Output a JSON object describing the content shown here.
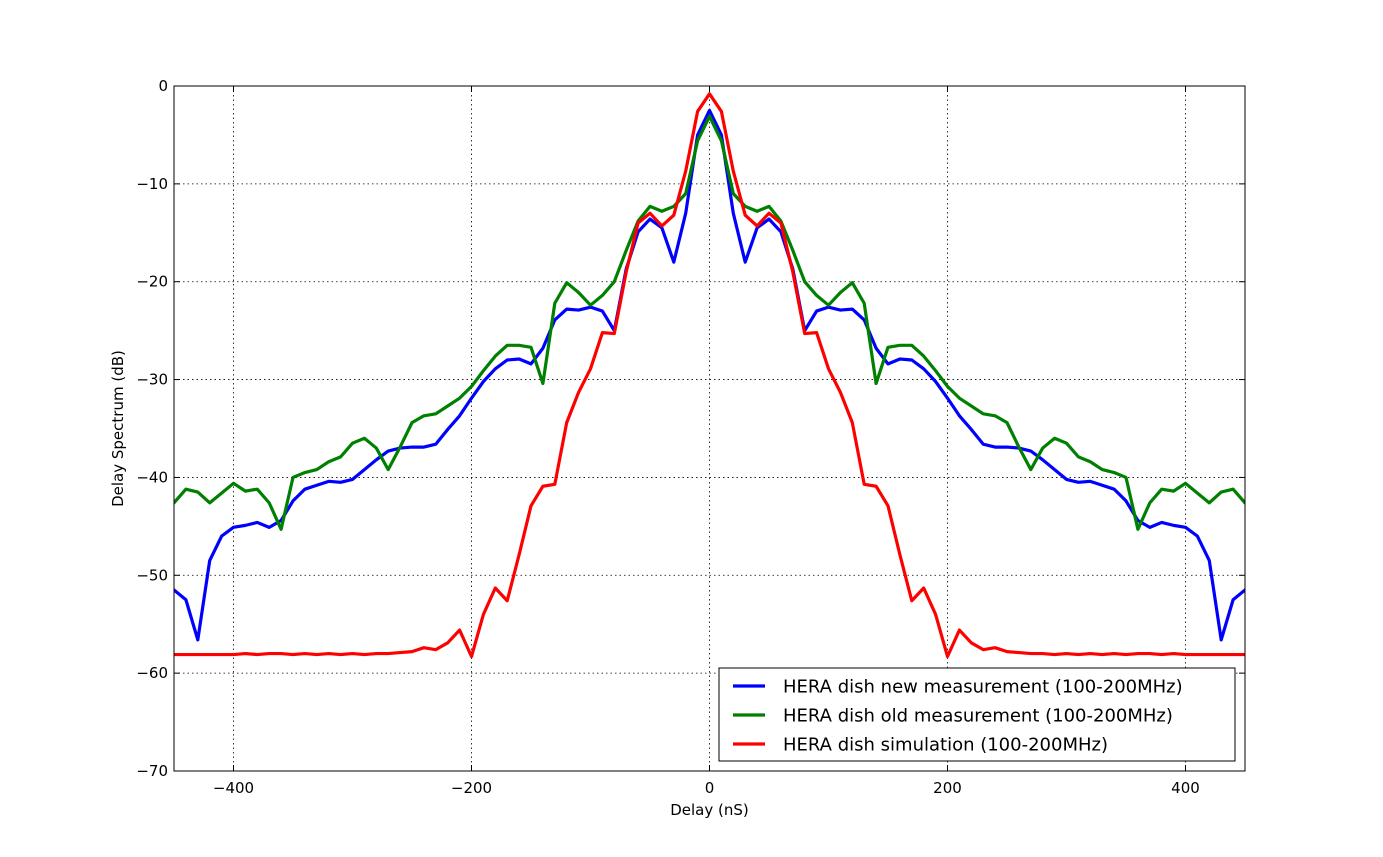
{
  "chart_data": {
    "type": "line",
    "title": "",
    "xlabel": "Delay (nS)",
    "ylabel": "Delay Spectrum (dB)",
    "xlim": [
      -450,
      450
    ],
    "ylim": [
      -70,
      0
    ],
    "xticks": [
      -400,
      -200,
      0,
      200,
      400
    ],
    "yticks": [
      0,
      -10,
      -20,
      -30,
      -40,
      -50,
      -60,
      -70
    ],
    "xtick_labels": [
      "−400",
      "−200",
      "0",
      "200",
      "400"
    ],
    "ytick_labels": [
      "0",
      "−10",
      "−20",
      "−30",
      "−40",
      "−50",
      "−60",
      "−70"
    ],
    "grid": true,
    "legend_position": "lower-right",
    "series": [
      {
        "name": "HERA dish new measurement (100-200MHz)",
        "color": "#0000ff",
        "x": [
          -450,
          -440,
          -430,
          -420,
          -410,
          -400,
          -390,
          -380,
          -370,
          -360,
          -350,
          -340,
          -330,
          -320,
          -310,
          -300,
          -290,
          -280,
          -270,
          -260,
          -250,
          -240,
          -230,
          -220,
          -210,
          -200,
          -190,
          -180,
          -170,
          -160,
          -150,
          -140,
          -130,
          -120,
          -110,
          -100,
          -90,
          -80,
          -70,
          -60,
          -50,
          -40,
          -30,
          -20,
          -10,
          0,
          10,
          20,
          30,
          40,
          50,
          60,
          70,
          80,
          90,
          100,
          110,
          120,
          130,
          140,
          150,
          160,
          170,
          180,
          190,
          200,
          210,
          220,
          230,
          240,
          250,
          260,
          270,
          280,
          290,
          300,
          310,
          320,
          330,
          340,
          350,
          360,
          370,
          380,
          390,
          400,
          410,
          420,
          430,
          440,
          450
        ],
        "values": [
          -51.5,
          -52.5,
          -56.6,
          -48.5,
          -46.0,
          -45.1,
          -44.9,
          -44.6,
          -45.1,
          -44.4,
          -42.4,
          -41.2,
          -40.8,
          -40.4,
          -40.5,
          -40.2,
          -39.2,
          -38.2,
          -37.3,
          -37.0,
          -36.9,
          -36.9,
          -36.6,
          -35.1,
          -33.7,
          -31.9,
          -30.2,
          -28.9,
          -28.0,
          -27.9,
          -28.4,
          -26.8,
          -23.9,
          -22.8,
          -22.9,
          -22.6,
          -23.0,
          -25.0,
          -18.7,
          -14.9,
          -13.6,
          -14.5,
          -18.0,
          -13.0,
          -5.0,
          -2.5,
          -5.0,
          -13.0,
          -18.0,
          -14.5,
          -13.6,
          -14.9,
          -18.7,
          -25.0,
          -23.0,
          -22.6,
          -22.9,
          -22.8,
          -23.9,
          -26.8,
          -28.4,
          -27.9,
          -28.0,
          -28.9,
          -30.2,
          -31.9,
          -33.7,
          -35.1,
          -36.6,
          -36.9,
          -36.9,
          -37.0,
          -37.3,
          -38.2,
          -39.2,
          -40.2,
          -40.5,
          -40.4,
          -40.8,
          -41.2,
          -42.4,
          -44.4,
          -45.1,
          -44.6,
          -44.9,
          -45.1,
          -46.0,
          -48.5,
          -56.6,
          -52.5,
          -51.5
        ]
      },
      {
        "name": "HERA dish old measurement (100-200MHz)",
        "color": "#008000",
        "x": [
          -450,
          -440,
          -430,
          -420,
          -410,
          -400,
          -390,
          -380,
          -370,
          -360,
          -350,
          -340,
          -330,
          -320,
          -310,
          -300,
          -290,
          -280,
          -270,
          -260,
          -250,
          -240,
          -230,
          -220,
          -210,
          -200,
          -190,
          -180,
          -170,
          -160,
          -150,
          -140,
          -130,
          -120,
          -110,
          -100,
          -90,
          -80,
          -70,
          -60,
          -50,
          -40,
          -30,
          -20,
          -10,
          0,
          10,
          20,
          30,
          40,
          50,
          60,
          70,
          80,
          90,
          100,
          110,
          120,
          130,
          140,
          150,
          160,
          170,
          180,
          190,
          200,
          210,
          220,
          230,
          240,
          250,
          260,
          270,
          280,
          290,
          300,
          310,
          320,
          330,
          340,
          350,
          360,
          370,
          380,
          390,
          400,
          410,
          420,
          430,
          440,
          450
        ],
        "values": [
          -42.6,
          -41.2,
          -41.5,
          -42.6,
          -41.6,
          -40.6,
          -41.4,
          -41.2,
          -42.6,
          -45.3,
          -40.0,
          -39.5,
          -39.2,
          -38.4,
          -37.9,
          -36.5,
          -36.0,
          -37.0,
          -39.2,
          -36.9,
          -34.4,
          -33.7,
          -33.5,
          -32.7,
          -31.9,
          -30.7,
          -29.1,
          -27.6,
          -26.5,
          -26.5,
          -26.7,
          -30.4,
          -22.2,
          -20.1,
          -21.1,
          -22.4,
          -21.4,
          -20.0,
          -16.8,
          -13.8,
          -12.3,
          -12.8,
          -12.3,
          -11.0,
          -5.6,
          -3.1,
          -5.6,
          -11.0,
          -12.3,
          -12.8,
          -12.3,
          -13.8,
          -16.8,
          -20.0,
          -21.4,
          -22.4,
          -21.1,
          -20.1,
          -22.2,
          -30.4,
          -26.7,
          -26.5,
          -26.5,
          -27.6,
          -29.1,
          -30.7,
          -31.9,
          -32.7,
          -33.5,
          -33.7,
          -34.4,
          -36.9,
          -39.2,
          -37.0,
          -36.0,
          -36.5,
          -37.9,
          -38.4,
          -39.2,
          -39.5,
          -40.0,
          -45.3,
          -42.6,
          -41.2,
          -41.4,
          -40.6,
          -41.6,
          -42.6,
          -41.5,
          -41.2,
          -42.6
        ]
      },
      {
        "name": "HERA dish simulation (100-200MHz)",
        "color": "#ff0000",
        "x": [
          -450,
          -440,
          -430,
          -420,
          -410,
          -400,
          -390,
          -380,
          -370,
          -360,
          -350,
          -340,
          -330,
          -320,
          -310,
          -300,
          -290,
          -280,
          -270,
          -260,
          -250,
          -240,
          -230,
          -220,
          -210,
          -200,
          -190,
          -180,
          -170,
          -160,
          -150,
          -140,
          -130,
          -120,
          -110,
          -100,
          -90,
          -80,
          -70,
          -60,
          -50,
          -40,
          -30,
          -20,
          -10,
          0,
          10,
          20,
          30,
          40,
          50,
          60,
          70,
          80,
          90,
          100,
          110,
          120,
          130,
          140,
          150,
          160,
          170,
          180,
          190,
          200,
          210,
          220,
          230,
          240,
          250,
          260,
          270,
          280,
          290,
          300,
          310,
          320,
          330,
          340,
          350,
          360,
          370,
          380,
          390,
          400,
          410,
          420,
          430,
          440,
          450
        ],
        "values": [
          -58.1,
          -58.1,
          -58.1,
          -58.1,
          -58.1,
          -58.1,
          -58.0,
          -58.1,
          -58.0,
          -58.0,
          -58.1,
          -58.0,
          -58.1,
          -58.0,
          -58.1,
          -58.0,
          -58.1,
          -58.0,
          -58.0,
          -57.9,
          -57.8,
          -57.4,
          -57.6,
          -56.9,
          -55.6,
          -58.3,
          -54.0,
          -51.3,
          -52.6,
          -47.9,
          -42.9,
          -40.9,
          -40.7,
          -34.4,
          -31.3,
          -28.9,
          -25.2,
          -25.3,
          -19.0,
          -14.0,
          -13.0,
          -14.3,
          -13.2,
          -8.7,
          -2.6,
          -0.8,
          -2.6,
          -8.7,
          -13.2,
          -14.3,
          -13.0,
          -14.0,
          -19.0,
          -25.3,
          -25.2,
          -28.9,
          -31.3,
          -34.4,
          -40.7,
          -40.9,
          -42.9,
          -47.9,
          -52.6,
          -51.3,
          -54.0,
          -58.3,
          -55.6,
          -56.9,
          -57.6,
          -57.4,
          -57.8,
          -57.9,
          -58.0,
          -58.0,
          -58.1,
          -58.0,
          -58.1,
          -58.0,
          -58.1,
          -58.0,
          -58.1,
          -58.0,
          -58.0,
          -58.1,
          -58.0,
          -58.1,
          -58.1,
          -58.1,
          -58.1,
          -58.1,
          -58.1
        ]
      }
    ]
  }
}
